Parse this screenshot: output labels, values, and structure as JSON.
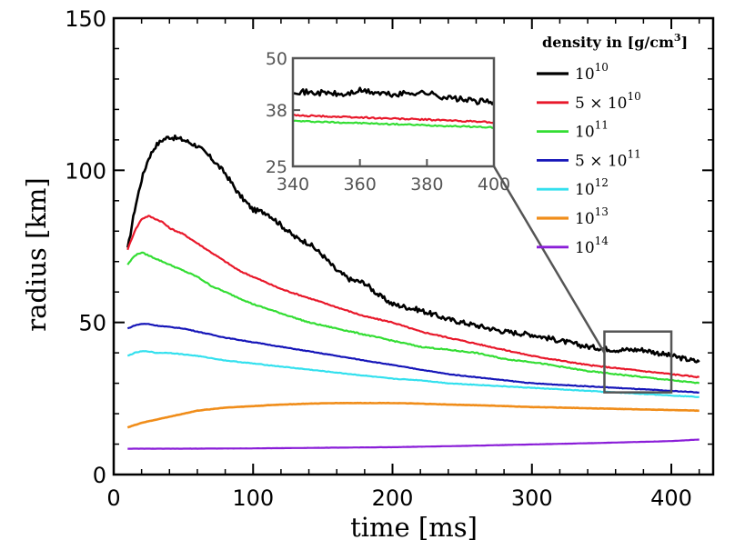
{
  "chart_data": {
    "type": "line",
    "title": "",
    "xlabel": "time [ms]",
    "ylabel": "radius [km]",
    "xlim": [
      0,
      430
    ],
    "ylim": [
      0,
      150
    ],
    "xticks": [
      "0",
      "100",
      "200",
      "300",
      "400"
    ],
    "yticks": [
      "0",
      "50",
      "100",
      "150"
    ],
    "legend": {
      "title_prefix": "density in [g/cm",
      "title_sup": "3",
      "title_suffix": "]",
      "placement": "top-right"
    },
    "series": [
      {
        "name": "10^10",
        "label_base": "10",
        "label_sup": "10",
        "color": "#000000",
        "width": 2.6,
        "x": [
          10,
          15,
          20,
          25,
          30,
          35,
          40,
          45,
          50,
          60,
          70,
          80,
          90,
          100,
          110,
          120,
          130,
          140,
          150,
          160,
          170,
          180,
          190,
          200,
          220,
          240,
          260,
          280,
          300,
          320,
          340,
          360,
          380,
          400,
          410,
          420
        ],
        "y": [
          74,
          87,
          97,
          104,
          108,
          110,
          111,
          110.5,
          110,
          108,
          104,
          99,
          92,
          87,
          86,
          82,
          78,
          76,
          72,
          67,
          64,
          63,
          59,
          56,
          54,
          51,
          49,
          47,
          46,
          44,
          42,
          41,
          41,
          39,
          38,
          37
        ]
      },
      {
        "name": "5x10^10",
        "label_base": "5 × 10",
        "label_sup": "10",
        "color": "#e8182a",
        "width": 2.2,
        "x": [
          10,
          15,
          20,
          25,
          30,
          35,
          40,
          50,
          60,
          70,
          80,
          90,
          100,
          120,
          140,
          160,
          180,
          200,
          220,
          240,
          260,
          280,
          300,
          320,
          340,
          360,
          380,
          400,
          420
        ],
        "y": [
          74,
          80,
          84,
          85,
          84,
          83,
          81,
          79,
          76,
          73,
          70,
          67,
          65,
          61,
          58,
          55,
          52,
          50,
          47,
          45,
          43,
          41,
          39,
          37.5,
          36,
          35,
          34,
          33,
          32
        ]
      },
      {
        "name": "10^11",
        "label_base": "10",
        "label_sup": "11",
        "color": "#33dd33",
        "width": 2.2,
        "x": [
          10,
          15,
          20,
          25,
          30,
          40,
          50,
          60,
          70,
          80,
          100,
          120,
          140,
          160,
          180,
          200,
          220,
          240,
          260,
          280,
          300,
          320,
          340,
          360,
          380,
          400,
          420
        ],
        "y": [
          69,
          72,
          73,
          72,
          71,
          69,
          67,
          65,
          62,
          60,
          56,
          53,
          50,
          48,
          46,
          44,
          42,
          41,
          40,
          38,
          37,
          35.5,
          34,
          33,
          32,
          31,
          30
        ]
      },
      {
        "name": "5x10^11",
        "label_base": "5 × 10",
        "label_sup": "11",
        "color": "#1515b8",
        "width": 2.2,
        "x": [
          10,
          15,
          20,
          25,
          30,
          40,
          50,
          60,
          80,
          100,
          120,
          140,
          160,
          180,
          200,
          220,
          240,
          260,
          280,
          300,
          320,
          340,
          360,
          380,
          400,
          420
        ],
        "y": [
          48,
          49,
          49.5,
          49.5,
          49,
          48.5,
          48,
          47,
          45,
          43.5,
          42,
          40.5,
          39,
          37.5,
          36,
          34.5,
          33,
          32,
          31,
          30,
          29.5,
          29,
          28.5,
          28,
          27.5,
          27
        ]
      },
      {
        "name": "10^12",
        "label_base": "10",
        "label_sup": "12",
        "color": "#33e0ee",
        "width": 2.2,
        "x": [
          10,
          15,
          20,
          25,
          30,
          40,
          50,
          60,
          80,
          100,
          120,
          140,
          160,
          180,
          200,
          220,
          240,
          260,
          280,
          300,
          320,
          340,
          360,
          380,
          400,
          420
        ],
        "y": [
          39,
          40,
          40.5,
          40.5,
          40,
          40,
          39.5,
          39,
          37.5,
          36.5,
          35.5,
          34.5,
          33.5,
          32.5,
          31.5,
          31,
          30,
          29.5,
          29,
          28.5,
          28,
          27.5,
          27,
          26.5,
          26,
          25.5
        ]
      },
      {
        "name": "10^13",
        "label_base": "10",
        "label_sup": "13",
        "color": "#f08d1a",
        "width": 2.6,
        "x": [
          10,
          20,
          30,
          40,
          50,
          60,
          80,
          100,
          120,
          140,
          160,
          180,
          200,
          220,
          240,
          260,
          280,
          300,
          320,
          340,
          360,
          380,
          400,
          420
        ],
        "y": [
          15.5,
          17,
          18,
          19,
          20,
          21,
          22,
          22.5,
          23,
          23.3,
          23.5,
          23.5,
          23.5,
          23.3,
          23,
          22.8,
          22.5,
          22.2,
          22,
          21.8,
          21.6,
          21.4,
          21.2,
          21
        ]
      },
      {
        "name": "10^14",
        "label_base": "10",
        "label_sup": "14",
        "color": "#8a1ed8",
        "width": 2.2,
        "x": [
          10,
          50,
          100,
          150,
          200,
          250,
          300,
          350,
          400,
          420
        ],
        "y": [
          8.5,
          8.5,
          8.6,
          8.8,
          9,
          9.4,
          9.9,
          10.4,
          11,
          11.5
        ]
      }
    ],
    "inset": {
      "xlim": [
        340,
        400
      ],
      "ylim": [
        25,
        50
      ],
      "xticks": [
        "340",
        "360",
        "380",
        "400"
      ],
      "yticks": [
        "25",
        "38",
        "50"
      ],
      "series_values": [
        {
          "x": [
            340,
            345,
            350,
            355,
            360,
            365,
            370,
            375,
            380,
            385,
            390,
            395,
            400
          ],
          "y": [
            42.5,
            42,
            42,
            41.5,
            42.5,
            42,
            41.5,
            42,
            42,
            41,
            40.5,
            40,
            40
          ]
        },
        {
          "x": [
            340,
            360,
            380,
            400
          ],
          "y": [
            36.8,
            36.3,
            35.8,
            35.2
          ]
        },
        {
          "x": [
            340,
            360,
            380,
            400
          ],
          "y": [
            35.5,
            35,
            34.5,
            34
          ]
        }
      ],
      "zoom_box": {
        "xlim": [
          352,
          400
        ],
        "ylim": [
          27,
          47
        ]
      }
    }
  }
}
